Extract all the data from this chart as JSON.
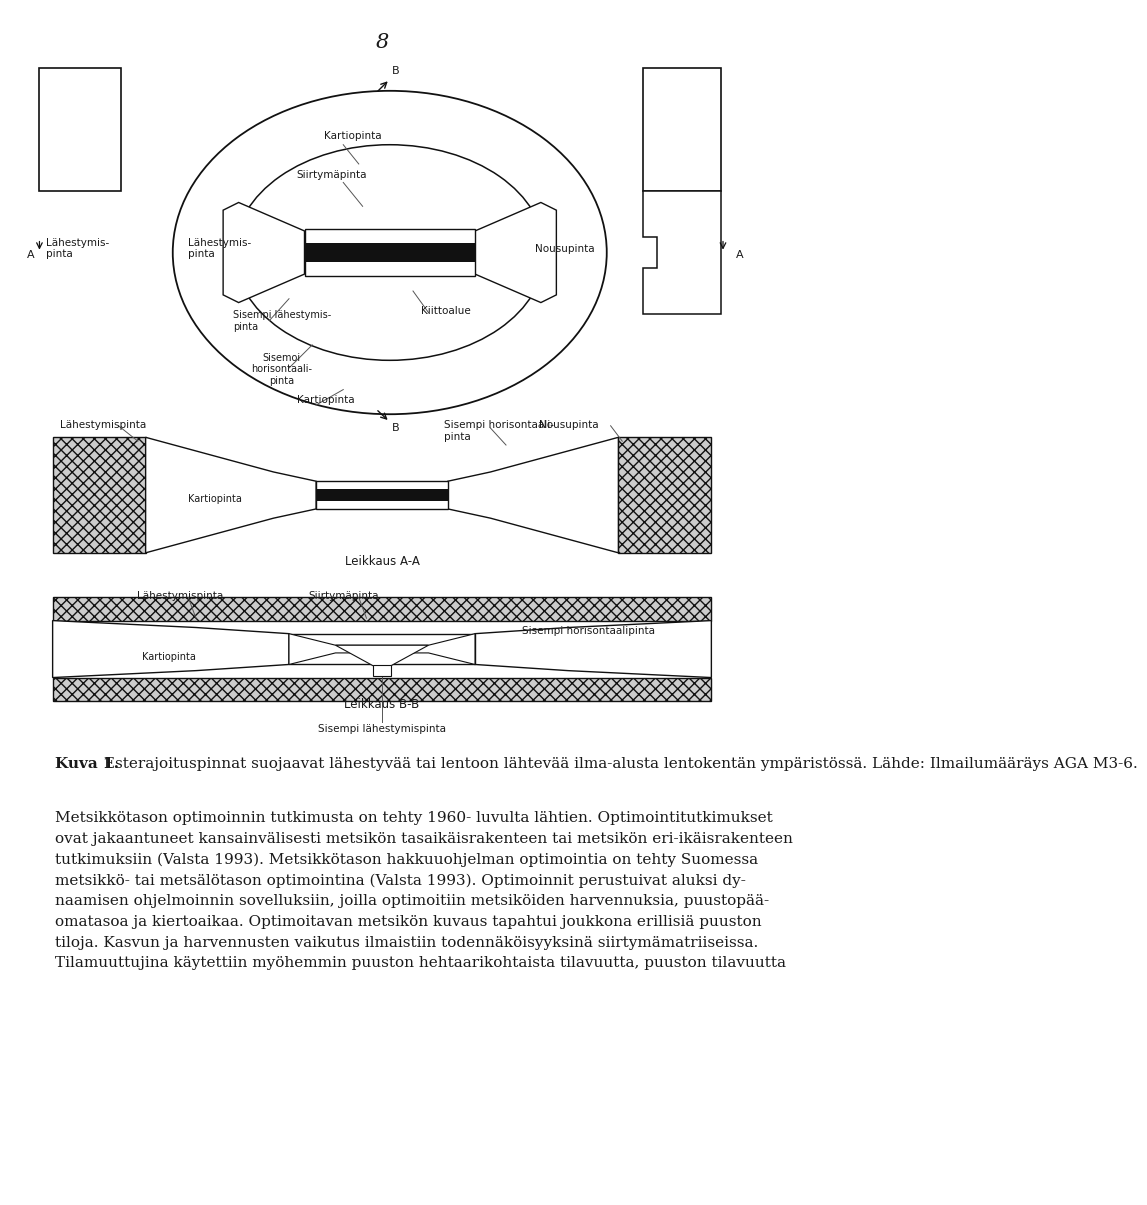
{
  "page_number": "8",
  "bg_color": "#ffffff",
  "text_color": "#1a1a1a",
  "dark_color": "#111111",
  "mid_color": "#555555",
  "light_gray": "#aaaaaa",
  "hatch_color": "#888888",
  "caption_bold": "Kuva 1.",
  "caption_text": " Esterajoituspinnat suojaavat lähestyvää tai lentoon lähtevää ilma-alusta lentokentän ympäristössä. Lähde: Ilmailumääräys AGA M3-6.",
  "body_lines": [
    "Metsikkötason optimoinnin tutkimusta on tehty 1960- luvulta lähtien. Optimointitutkimukset",
    "ovat jakaantuneet kansainvälisesti metsikön tasaikäisrakenteen tai metsikön eri-ikäisrakenteen",
    "tutkimuksiin (Valsta 1993). Metsikkötason hakkuuohjelman optimointia on tehty Suomessa",
    "metsikkö- tai metsälötason optimointina (Valsta 1993). Optimoinnit perustuivat aluksi dy-",
    "naamisen ohjelmoinnin sovelluksiin, joilla optimoitiin metsiköiden harvennuksia, puustopää-",
    "omatasoa ja kiertoaikaa. Optimoitavan metsikön kuvaus tapahtui joukkona erillisiä puuston",
    "tiloja. Kasvun ja harvennusten vaikutus ilmaistiin todennäköisyyksinä siirtymämatriiseissa.",
    "Tilamuuttujina käytettiin myöhemmin puuston hehtaarikohtaista tilavuutta, puuston tilavuutta"
  ]
}
